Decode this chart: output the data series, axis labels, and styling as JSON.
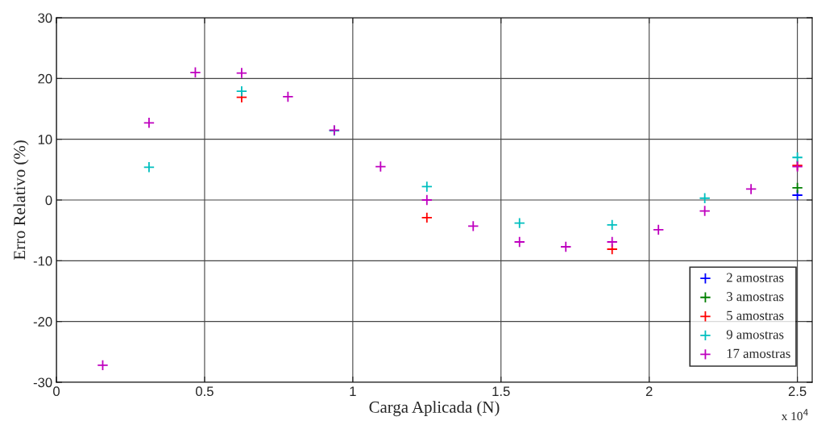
{
  "chart_data": {
    "type": "scatter",
    "xlabel": "Carga Aplicada (N)",
    "ylabel": "Erro Relativo (%)",
    "xlim": [
      0,
      2.55
    ],
    "ylim": [
      -30,
      30
    ],
    "xticks": [
      0,
      0.5,
      1,
      1.5,
      2,
      2.5
    ],
    "yticks": [
      -30,
      -20,
      -10,
      0,
      10,
      20,
      30
    ],
    "grid": true,
    "legend": "bottom right",
    "marker": "cross",
    "annotations": [
      "x 10$^{4}$"
    ],
    "series": [
      {
        "name": "2 amostras",
        "color": "#0000ff",
        "x": [
          2.5
        ],
        "values": [
          0.8
        ]
      },
      {
        "name": "3 amostras",
        "color": "#008000",
        "x": [
          2.5
        ],
        "values": [
          2.0
        ]
      },
      {
        "name": "5 amostras",
        "color": "#ff0000",
        "x": [
          0.625,
          1.25,
          1.875,
          2.5
        ],
        "values": [
          16.9,
          -2.9,
          -8.1,
          5.7
        ]
      },
      {
        "name": "9 amostras",
        "color": "#00bfbf",
        "x": [
          0.3125,
          0.625,
          0.9375,
          1.25,
          1.5625,
          1.875,
          2.1875,
          2.5
        ],
        "values": [
          5.4,
          17.9,
          11.4,
          2.2,
          -3.8,
          -4.1,
          0.3,
          7.0
        ]
      },
      {
        "name": "17 amostras",
        "color": "#bf00bf",
        "x": [
          0.15625,
          0.3125,
          0.46875,
          0.625,
          0.78125,
          0.9375,
          1.09375,
          1.25,
          1.40625,
          1.5625,
          1.71875,
          1.875,
          2.03125,
          2.1875,
          2.34375,
          2.5
        ],
        "values": [
          -27.2,
          12.7,
          21.0,
          20.9,
          17.0,
          11.5,
          5.5,
          0.0,
          -4.3,
          -6.9,
          -7.7,
          -6.9,
          -4.9,
          -1.8,
          1.8,
          5.5
        ]
      }
    ]
  }
}
